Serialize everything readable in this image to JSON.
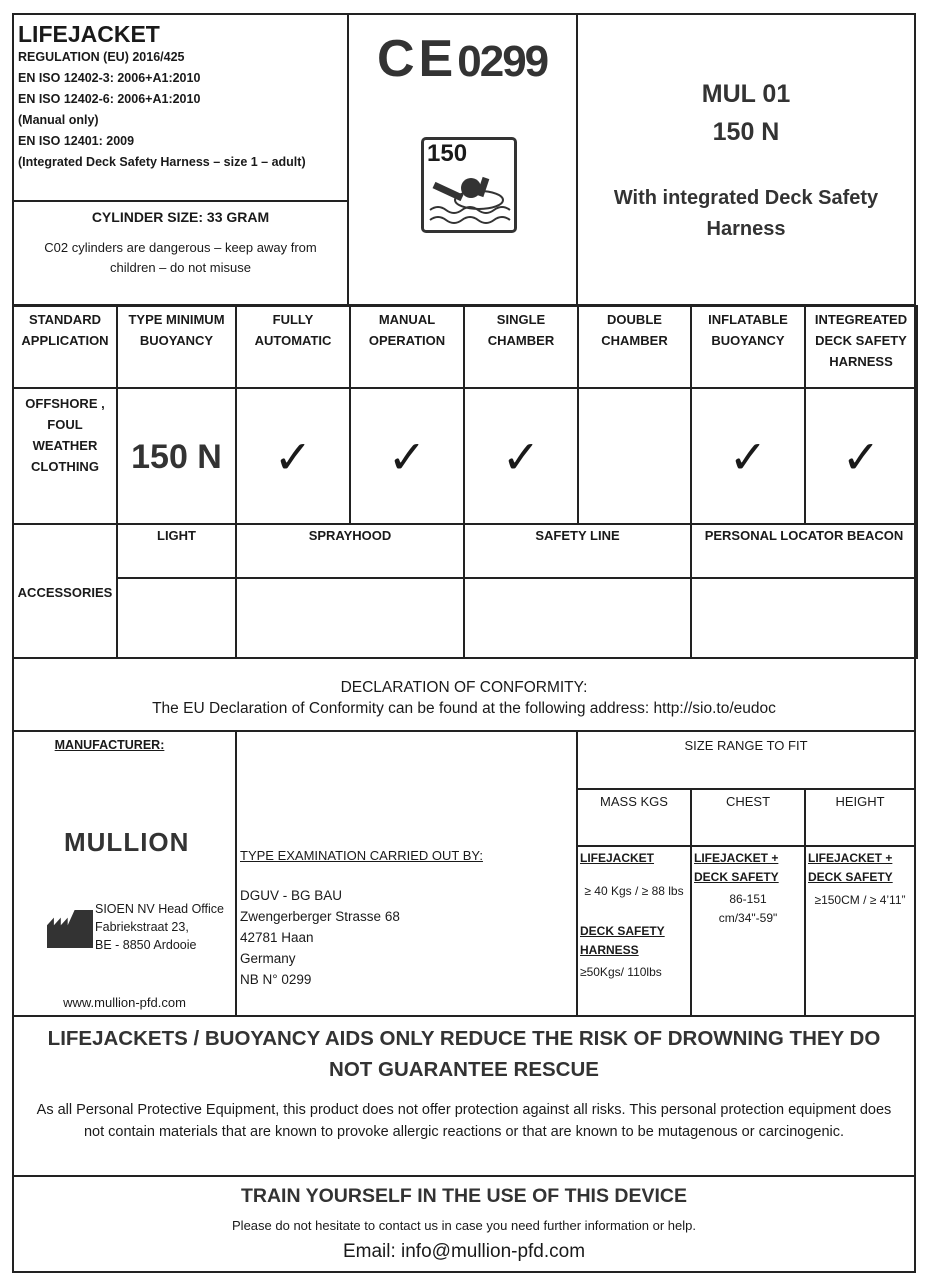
{
  "header": {
    "title": "LIFEJACKET",
    "standards": [
      "REGULATION (EU) 2016/425",
      "EN ISO 12402-3: 2006+A1:2010",
      "EN ISO 12402-6: 2006+A1:2010",
      "(Manual only)",
      "EN ISO 12401: 2009",
      "(Integrated Deck Safety Harness – size 1 – adult)"
    ],
    "cylinder": "CYLINDER SIZE:   33   GRAM",
    "cylinder_warning": "C02 cylinders are dangerous – keep away from children – do not misuse",
    "ce_mark": "CE",
    "notified_body": "0299",
    "pictogram_label": "150",
    "model": "MUL 01",
    "buoyancy": "150 N",
    "model_desc": "With integrated Deck Safety Harness"
  },
  "spec_table": {
    "headers": [
      "STANDARD APPLICATION",
      "TYPE MINIMUM BUOYANCY",
      "FULLY AUTOMATIC",
      "MANUAL OPERATION",
      "SINGLE CHAMBER",
      "DOUBLE CHAMBER",
      "INFLATABLE BUOYANCY",
      "INTEGREATED DECK SAFETY HARNESS"
    ],
    "row": {
      "application": "OFFSHORE , FOUL WEATHER CLOTHING",
      "buoyancy": "150 N",
      "checks": [
        true,
        true,
        true,
        false,
        true,
        true
      ],
      "check_glyph": "✓"
    }
  },
  "accessories": {
    "label": "ACCESSORIES",
    "items": [
      "LIGHT",
      "SPRAYHOOD",
      "SAFETY LINE",
      "PERSONAL LOCATOR BEACON"
    ]
  },
  "declaration": {
    "title": "DECLARATION OF CONFORMITY:",
    "text": "The EU Declaration of Conformity can be found at the following address: http://sio.to/eudoc"
  },
  "manufacturer": {
    "label": "MANUFACTURER:",
    "brand": "MULLION",
    "address": [
      "SIOEN NV Head Office",
      "Fabriekstraat 23,",
      "BE - 8850 Ardooie"
    ],
    "website": "www.mullion-pfd.com"
  },
  "examination": {
    "label": "TYPE EXAMINATION CARRIED OUT BY:",
    "lines": [
      "DGUV - BG BAU",
      "Zwengerberger Strasse 68",
      "42781 Haan",
      "Germany",
      "NB N° 0299"
    ]
  },
  "size": {
    "title": "SIZE RANGE TO FIT",
    "cols": [
      "MASS KGS",
      "CHEST",
      "HEIGHT"
    ],
    "mass": {
      "l1": "LIFEJACKET",
      "v1": "≥ 40 Kgs / ≥ 88 lbs",
      "l2": "DECK SAFETY HARNESS",
      "v2": "≥50Kgs/ 110lbs"
    },
    "chest": {
      "l": "LIFEJACKET + DECK SAFETY",
      "v": "86-151 cm/34\"-59\""
    },
    "height": {
      "l": "LIFEJACKET + DECK SAFETY",
      "v": "≥150CM / ≥ 4’11”"
    }
  },
  "warning": {
    "title": "LIFEJACKETS / BUOYANCY AIDS ONLY REDUCE THE RISK OF DROWNING THEY DO NOT GUARANTEE RESCUE",
    "text": "As all Personal Protective Equipment, this product does not offer protection against all risks. This personal protection equipment does not contain materials that are known to provoke allergic reactions or that are known to be mutagenous or carcinogenic."
  },
  "footer": {
    "title": "TRAIN YOURSELF IN THE USE OF THIS DEVICE",
    "text": "Please do not hesitate to contact us in case you need further information or help.",
    "email": "Email:  info@mullion-pfd.com"
  }
}
